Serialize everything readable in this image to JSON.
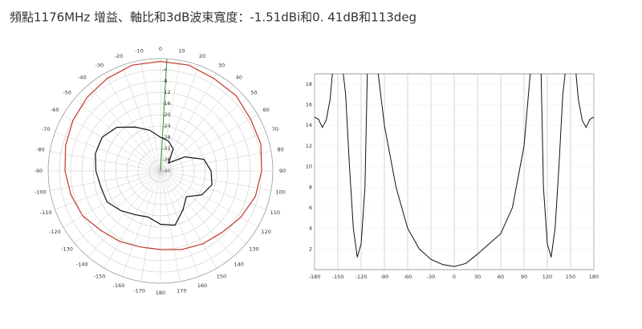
{
  "title": "頻點1176MHz 增益、軸比和3dB波束寬度：-1.51dBi和0. 41dB和113deg",
  "chart_data": [
    {
      "type": "polar",
      "rlim": [
        -40,
        0
      ],
      "rticks": [
        -40,
        -36,
        -32,
        -28,
        -24,
        -20,
        -16,
        -12,
        -8,
        -4
      ],
      "angle_ticks": [
        0,
        10,
        20,
        30,
        40,
        50,
        60,
        70,
        80,
        90,
        100,
        110,
        120,
        130,
        140,
        150,
        160,
        170,
        180,
        -170,
        -160,
        -150,
        -140,
        -130,
        -120,
        -110,
        -100,
        -90,
        -80,
        -70,
        -60,
        -50,
        -40,
        -30,
        -20,
        -10
      ],
      "theta": [
        0,
        15,
        30,
        45,
        60,
        75,
        90,
        105,
        120,
        135,
        150,
        165,
        180,
        195,
        210,
        225,
        240,
        255,
        270,
        285,
        300,
        315,
        330,
        345
      ],
      "series": [
        {
          "color": "#c0392b",
          "values": [
            -1,
            -1,
            -2,
            -2,
            -3,
            -3,
            -4,
            -5,
            -7,
            -9,
            -10,
            -11,
            -12,
            -12,
            -11,
            -10,
            -8,
            -7,
            -6,
            -5,
            -4,
            -3,
            -2,
            -1
          ]
        },
        {
          "color": "#111111",
          "values": [
            -28,
            -29,
            -31,
            -36,
            -30,
            -24,
            -22,
            -21,
            -23,
            -27,
            -24,
            -20,
            -21,
            -23,
            -22,
            -20,
            -18,
            -18,
            -17,
            -16,
            -16,
            -18,
            -22,
            -25
          ]
        }
      ],
      "grid": true
    },
    {
      "type": "line",
      "x": [
        -180,
        -175,
        -170,
        -165,
        -160,
        -157,
        -150,
        -143,
        -140,
        -135,
        -130,
        -125,
        -120,
        -115,
        -112,
        -105,
        -98,
        -90,
        -75,
        -60,
        -45,
        -30,
        -15,
        0,
        15,
        30,
        45,
        60,
        75,
        90,
        98,
        105,
        112,
        115,
        120,
        125,
        130,
        135,
        140,
        143,
        150,
        157,
        160,
        165,
        170,
        175,
        180
      ],
      "values": [
        14.8,
        14.6,
        13.8,
        14.5,
        16.5,
        19,
        null,
        19,
        17,
        10,
        4,
        1.2,
        2.5,
        8,
        19,
        null,
        19,
        14,
        8,
        4,
        2,
        1,
        0.5,
        0.3,
        0.6,
        1.5,
        2.5,
        3.5,
        6,
        12,
        19,
        null,
        19,
        8,
        2.5,
        1.2,
        4,
        10,
        17,
        19,
        null,
        19,
        16.5,
        14.5,
        13.8,
        14.6,
        14.8
      ],
      "color": "#111111",
      "xlim": [
        -180,
        180
      ],
      "xticks": [
        -180,
        -150,
        -120,
        -90,
        -60,
        -30,
        0,
        30,
        60,
        90,
        120,
        150,
        180
      ],
      "ylim": [
        0,
        19
      ],
      "yticks": [
        2,
        4,
        6,
        8,
        10,
        12,
        14,
        16,
        18
      ],
      "grid": true
    }
  ]
}
